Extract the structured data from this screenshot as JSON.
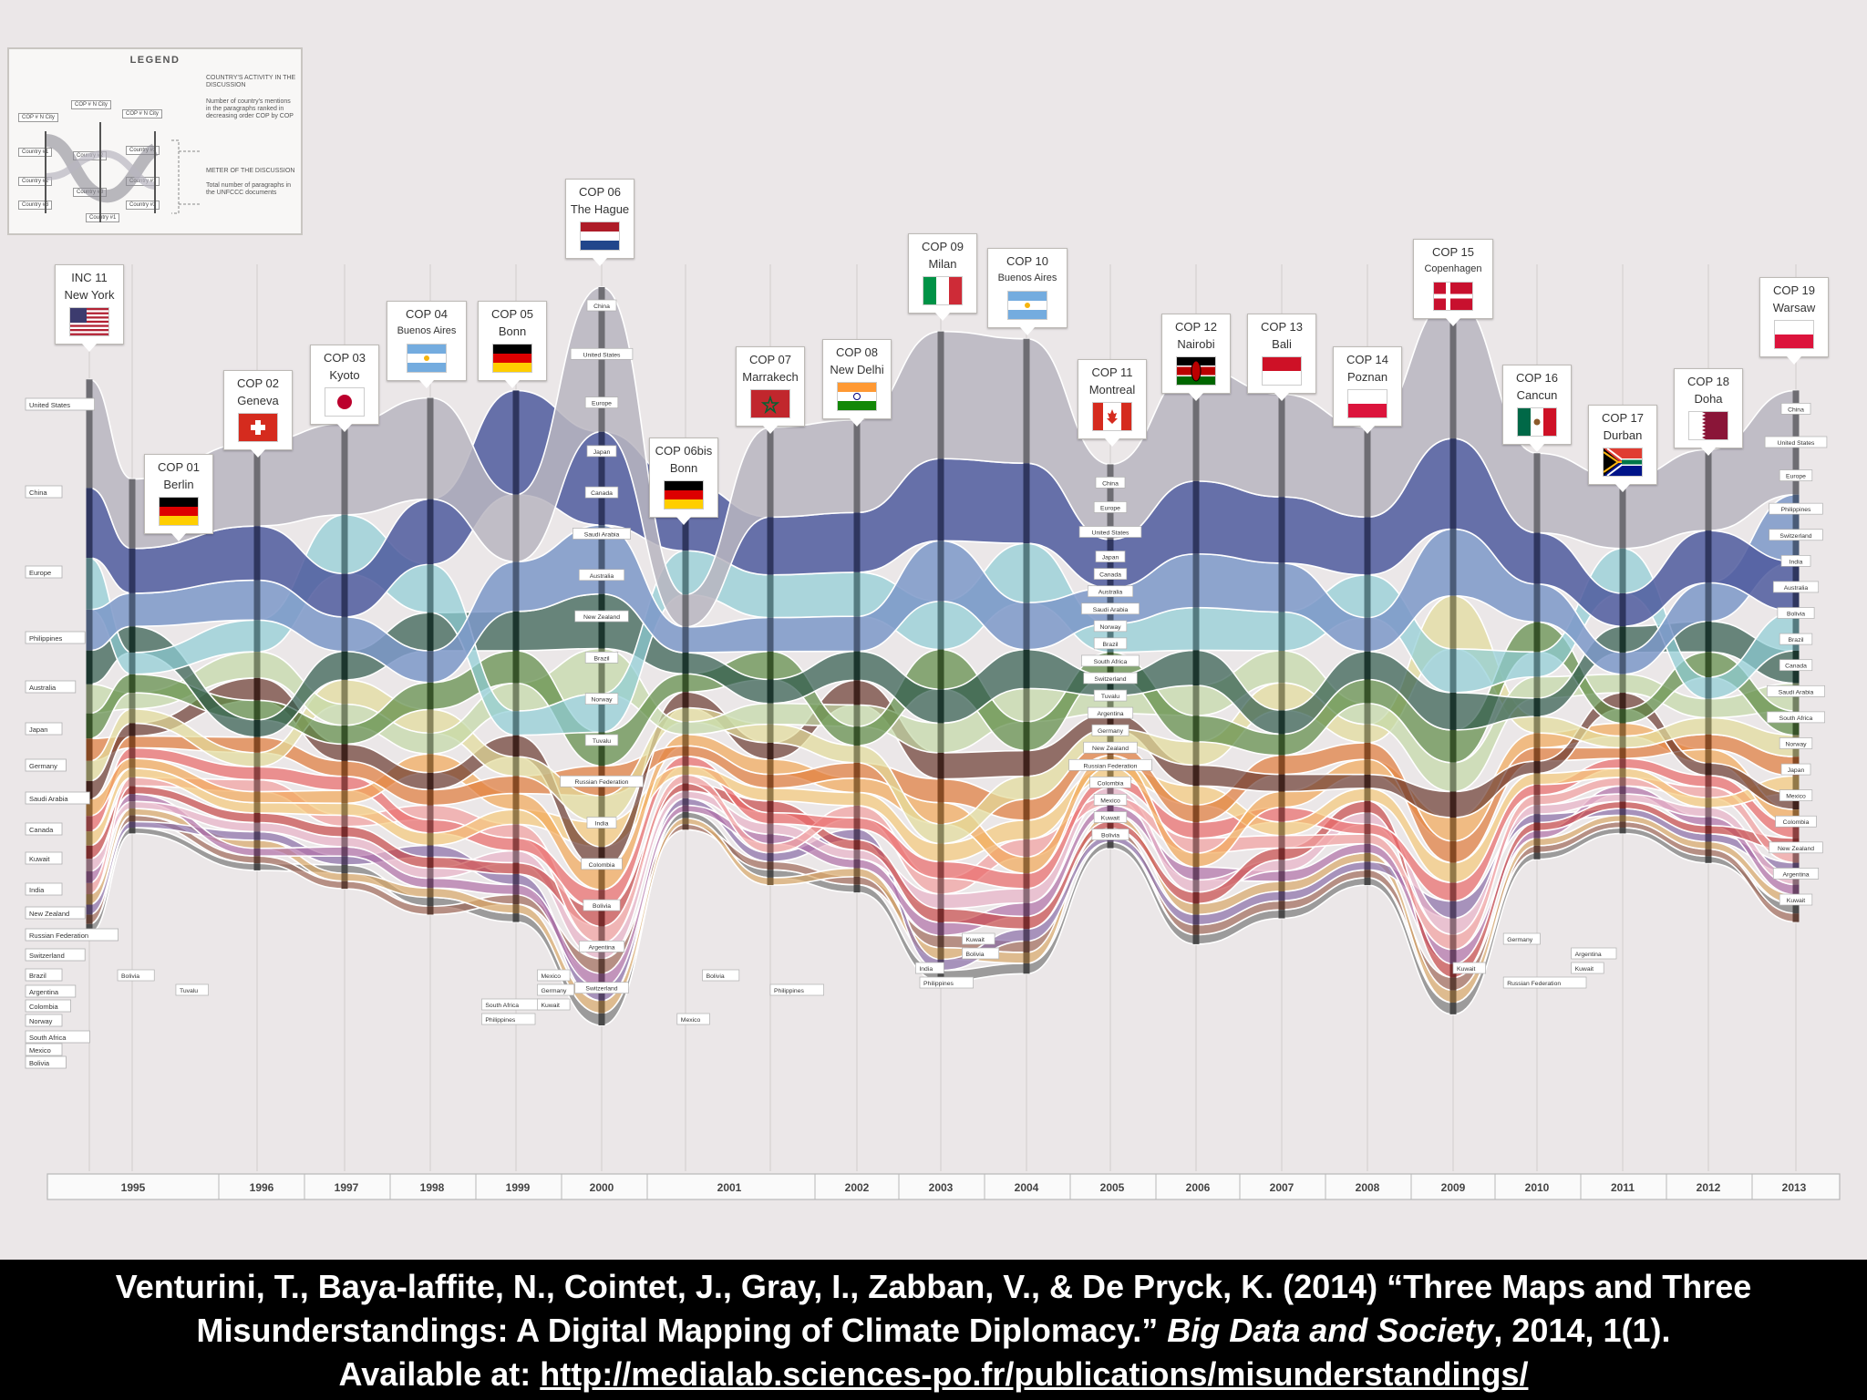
{
  "legend": {
    "title": "LEGEND",
    "note_activity": "COUNTRY'S ACTIVITY IN THE DISCUSSION",
    "note_activity_detail": "Number of country's mentions in the paragraphs ranked in decreasing order COP by COP",
    "note_meter": "METER OF THE DISCUSSION",
    "note_meter_detail": "Total number of paragraphs in the UNFCCC documents",
    "cop_city": "COP # N City",
    "country1": "Country #1",
    "country2": "Country #2",
    "country3": "Country #3"
  },
  "chart_data": {
    "type": "area",
    "title": "Three Maps and Three Misunderstandings: A Digital Mapping of Climate Diplomacy",
    "xlabel": "",
    "ylabel": "",
    "x_axis": [
      "1995",
      "1996",
      "1997",
      "1998",
      "1999",
      "2000",
      "2001",
      "2002",
      "2003",
      "2004",
      "2005",
      "2006",
      "2007",
      "2008",
      "2009",
      "2010",
      "2011",
      "2012",
      "2013"
    ],
    "conferences": [
      {
        "code": "INC 11",
        "city": "New York",
        "year": "1995",
        "flag": "us",
        "discussion_height": 0.75
      },
      {
        "code": "COP 01",
        "city": "Berlin",
        "year": "1995",
        "flag": "de",
        "discussion_height": 0.48
      },
      {
        "code": "COP 02",
        "city": "Geneva",
        "year": "1996",
        "flag": "ch",
        "discussion_height": 0.58
      },
      {
        "code": "COP 03",
        "city": "Kyoto",
        "year": "1997",
        "flag": "jp",
        "discussion_height": 0.63
      },
      {
        "code": "COP 04",
        "city": "Buenos Aires",
        "year": "1998",
        "flag": "ar",
        "discussion_height": 0.7
      },
      {
        "code": "COP 05",
        "city": "Bonn",
        "year": "1999",
        "flag": "de",
        "discussion_height": 0.72
      },
      {
        "code": "COP 06",
        "city": "The Hague",
        "year": "2000",
        "flag": "nl",
        "discussion_height": 1.0
      },
      {
        "code": "COP 06bis",
        "city": "Bonn",
        "year": "2001",
        "flag": "de",
        "discussion_height": 0.47
      },
      {
        "code": "COP 07",
        "city": "Marrakech",
        "year": "2001",
        "flag": "ma",
        "discussion_height": 0.62
      },
      {
        "code": "COP 08",
        "city": "New Delhi",
        "year": "2002",
        "flag": "in",
        "discussion_height": 0.64
      },
      {
        "code": "COP 09",
        "city": "Milan",
        "year": "2003",
        "flag": "it",
        "discussion_height": 0.88
      },
      {
        "code": "COP 10",
        "city": "Buenos Aires",
        "year": "2004",
        "flag": "ar",
        "discussion_height": 0.86
      },
      {
        "code": "COP 11",
        "city": "Montreal",
        "year": "2005",
        "flag": "ca",
        "discussion_height": 0.52
      },
      {
        "code": "COP 12",
        "city": "Nairobi",
        "year": "2006",
        "flag": "ke",
        "discussion_height": 0.78
      },
      {
        "code": "COP 13",
        "city": "Bali",
        "year": "2007",
        "flag": "id",
        "discussion_height": 0.71
      },
      {
        "code": "COP 14",
        "city": "Poznan",
        "year": "2008",
        "flag": "pl",
        "discussion_height": 0.62
      },
      {
        "code": "COP 15",
        "city": "Copenhagen",
        "year": "2009",
        "flag": "dk",
        "discussion_height": 0.97
      },
      {
        "code": "COP 16",
        "city": "Cancun",
        "year": "2010",
        "flag": "mx",
        "discussion_height": 0.55
      },
      {
        "code": "COP 17",
        "city": "Durban",
        "year": "2011",
        "flag": "za",
        "discussion_height": 0.48
      },
      {
        "code": "COP 18",
        "city": "Doha",
        "year": "2012",
        "flag": "qa",
        "discussion_height": 0.56
      },
      {
        "code": "COP 19",
        "city": "Warsaw",
        "year": "2013",
        "flag": "pl",
        "discussion_height": 0.72
      }
    ],
    "series": [
      {
        "name": "United States",
        "color": "#b8b5c0"
      },
      {
        "name": "China",
        "color": "#4f5a9e"
      },
      {
        "name": "Europe",
        "color": "#7c98c8"
      },
      {
        "name": "Philippines",
        "color": "#8ecdd6"
      },
      {
        "name": "Australia",
        "color": "#2f5a4c"
      },
      {
        "name": "Japan",
        "color": "#5c8a44"
      },
      {
        "name": "Germany",
        "color": "#c3d9a6"
      },
      {
        "name": "Saudi Arabia",
        "color": "#e2dc9a"
      },
      {
        "name": "Canada",
        "color": "#6b3a30"
      },
      {
        "name": "Kuwait",
        "color": "#e07a3a"
      },
      {
        "name": "India",
        "color": "#f2a858"
      },
      {
        "name": "New Zealand",
        "color": "#f5c97a"
      },
      {
        "name": "Russian Federation",
        "color": "#e96a6a"
      },
      {
        "name": "Switzerland",
        "color": "#f2a0a0"
      },
      {
        "name": "Brazil",
        "color": "#c84a4a"
      },
      {
        "name": "Argentina",
        "color": "#e8b2c8"
      },
      {
        "name": "Colombia",
        "color": "#b070a8"
      },
      {
        "name": "Norway",
        "color": "#8a6ea8"
      },
      {
        "name": "South Africa",
        "color": "#d9a86a"
      },
      {
        "name": "Mexico",
        "color": "#a06a5a"
      },
      {
        "name": "Bolivia",
        "color": "#7a7a7a"
      }
    ],
    "first_column_ranking": [
      "United States",
      "China",
      "Europe",
      "Philippines",
      "Australia",
      "Japan",
      "Germany",
      "Saudi Arabia",
      "Canada",
      "Kuwait",
      "India",
      "New Zealand",
      "Russian Federation",
      "Switzerland",
      "Brazil",
      "Argentina",
      "Colombia",
      "Norway",
      "South Africa",
      "Mexico",
      "Bolivia"
    ],
    "cop06_ranking": [
      "China",
      "United States",
      "Europe",
      "Japan",
      "Canada",
      "Saudi Arabia",
      "Australia",
      "New Zealand",
      "Brazil",
      "Norway",
      "Tuvalu",
      "Russian Federation",
      "India",
      "Colombia",
      "Bolivia",
      "Argentina",
      "Switzerland"
    ],
    "cop11_ranking": [
      "China",
      "Europe",
      "United States",
      "Japan",
      "Canada",
      "Australia",
      "Saudi Arabia",
      "Norway",
      "Brazil",
      "South Africa",
      "Switzerland",
      "Tuvalu",
      "Argentina",
      "Germany",
      "New Zealand",
      "Russian Federation",
      "Colombia",
      "Mexico",
      "Kuwait",
      "Bolivia"
    ],
    "cop19_ranking": [
      "China",
      "United States",
      "Europe",
      "Philippines",
      "Switzerland",
      "India",
      "Australia",
      "Bolivia",
      "Brazil",
      "Canada",
      "Saudi Arabia",
      "South Africa",
      "Norway",
      "Japan",
      "Mexico",
      "Colombia",
      "New Zealand",
      "Argentina",
      "Kuwait"
    ],
    "side_labels": [
      {
        "text": "Bolivia",
        "year_index": 0.66
      },
      {
        "text": "Tuvalu",
        "year_index": 1.35
      },
      {
        "text": "South Africa",
        "year_index": 4.6
      },
      {
        "text": "Philippines",
        "year_index": 4.6
      },
      {
        "text": "Mexico",
        "year_index": 5.25
      },
      {
        "text": "Germany",
        "year_index": 5.25
      },
      {
        "text": "Kuwait",
        "year_index": 5.25
      },
      {
        "text": "Mexico",
        "year_index": 6.9
      },
      {
        "text": "Bolivia",
        "year_index": 7.2
      },
      {
        "text": "Philippines",
        "year_index": 8.0
      },
      {
        "text": "India",
        "year_index": 9.7
      },
      {
        "text": "Philippines",
        "year_index": 9.75
      },
      {
        "text": "Kuwait",
        "year_index": 10.25
      },
      {
        "text": "Bolivia",
        "year_index": 10.25
      },
      {
        "text": "Kuwait",
        "year_index": 16.0
      },
      {
        "text": "Russian Federation",
        "year_index": 16.6
      },
      {
        "text": "Germany",
        "year_index": 16.6
      },
      {
        "text": "Argentina",
        "year_index": 17.4
      },
      {
        "text": "Kuwait",
        "year_index": 17.4
      }
    ]
  },
  "citation": {
    "line1": "Venturini, T., Baya-laffite, N., Cointet, J., Gray, I., Zabban, V., & De Pryck, K. (2014) “Three Maps and Three",
    "line2_pre": "Misunderstandings: A Digital Mapping of Climate Diplomacy.”",
    "line2_journal": "Big Data and Society",
    "line2_post": ", 2014, 1(1).",
    "line3_pre": "Available at:",
    "url": "http://medialab.sciences-po.fr/publications/misunderstandings/"
  }
}
